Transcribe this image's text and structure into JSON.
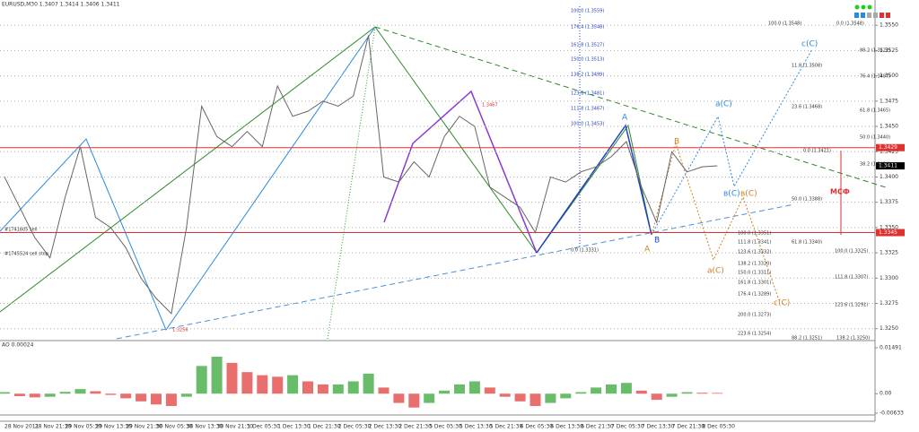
{
  "header": "EURUSD,M30  1.3407 1.3414 1.3406 1.3411",
  "chart_data": {
    "type": "line",
    "categories": [
      "28 Nov 2011",
      null,
      "28 Nov 21:30",
      null,
      "29 Nov 05:30",
      null,
      "29 Nov 13:30",
      null,
      "29 Nov 21:30",
      null,
      "30 Nov 05:30",
      null,
      "30 Nov 13:30",
      null,
      "30 Nov 21:30",
      null,
      "1 Dec 05:30",
      null,
      "1 Dec 13:30",
      null,
      "1 Dec 21:30",
      null,
      "2 Dec 05:30",
      null,
      "2 Dec 13:30",
      null,
      "2 Dec 21:30",
      null,
      "5 Dec 05:30",
      null,
      "5 Dec 13:30",
      null,
      "5 Dec 21:30",
      null,
      "6 Dec 05:30",
      null,
      "6 Dec 13:30",
      null,
      "6 Dec 21:30",
      null,
      "7 Dec 05:30",
      null,
      "7 Dec 13:30",
      null,
      "7 Dec 21:30",
      null,
      "8 Dec 05:30",
      null
    ],
    "series": [
      {
        "name": "EURUSD",
        "color": "#666666",
        "values": [
          1.34,
          1.337,
          1.334,
          1.332,
          1.338,
          1.343,
          1.336,
          1.335,
          1.333,
          1.33,
          1.328,
          1.3265,
          1.335,
          1.347,
          1.344,
          1.343,
          1.3445,
          1.343,
          1.349,
          1.346,
          1.3465,
          1.3475,
          1.347,
          1.348,
          1.354,
          1.34,
          1.3395,
          1.3415,
          1.34,
          1.344,
          1.346,
          1.345,
          1.339,
          1.338,
          1.337,
          1.3345,
          1.34,
          1.3395,
          1.3405,
          1.341,
          1.342,
          1.3435,
          1.339,
          1.3355,
          1.3425,
          1.3405,
          1.341,
          1.3411
        ]
      }
    ],
    "ylim": [
      1.324,
      1.3575
    ],
    "yticks": [
      {
        "value": 1.325,
        "label": "1.3250"
      },
      {
        "value": 1.3275,
        "label": "1.3275"
      },
      {
        "value": 1.33,
        "label": "1.3300"
      },
      {
        "value": 1.3325,
        "label": "1.3325"
      },
      {
        "value": 1.335,
        "label": "1.3350"
      },
      {
        "value": 1.3375,
        "label": "1.3375"
      },
      {
        "value": 1.34,
        "label": "1.3400"
      },
      {
        "value": 1.3425,
        "label": "1.3425"
      },
      {
        "value": 1.345,
        "label": "1.3450"
      },
      {
        "value": 1.3475,
        "label": "1.3475"
      },
      {
        "value": 1.35,
        "label": "1.3500"
      },
      {
        "value": 1.3525,
        "label": "1.3525"
      },
      {
        "value": 1.355,
        "label": "1.3550"
      }
    ],
    "levels": [
      {
        "value": 1.3429,
        "label": "1.3429"
      },
      {
        "value": 1.3345,
        "label": "1.3345"
      }
    ],
    "level_color": "#e03030",
    "current": {
      "value": 1.3411,
      "label": "1.3411"
    },
    "grid": true
  },
  "ao": {
    "type": "bar",
    "title": "AO 0.00024",
    "values": [
      0.0005,
      -0.0008,
      -0.0012,
      -0.001,
      0.0006,
      0.0015,
      0.0008,
      -0.0004,
      -0.0015,
      -0.0025,
      -0.0035,
      -0.004,
      -0.001,
      0.009,
      0.012,
      0.01,
      0.007,
      0.006,
      0.0055,
      0.006,
      0.004,
      0.003,
      0.003,
      0.004,
      0.0065,
      0.002,
      -0.003,
      -0.0045,
      -0.003,
      0.001,
      0.003,
      0.004,
      0.002,
      -0.001,
      -0.0025,
      -0.004,
      -0.003,
      -0.0015,
      0.0005,
      0.002,
      0.003,
      0.0035,
      0.001,
      -0.002,
      -0.001,
      0.0005,
      0.0003,
      0.00024
    ],
    "up_color": "#2aa02a",
    "down_color": "#e03030",
    "ylim": [
      -0.00633,
      0.01491
    ],
    "yticks": [
      {
        "value": -0.00633,
        "label": "-0.00633"
      },
      {
        "value": 0,
        "label": "0.00"
      },
      {
        "value": 0.01491,
        "label": "0.01491"
      }
    ]
  },
  "annotations": [
    "100.0 (1.3559)",
    "176.4 (1.3548)",
    "161.8 (1.3527)",
    "150.0 (1.3513)",
    "138.2 (1.3499)",
    "123.6 (1.3481)",
    "111.8 (1.3467)",
    "100.0 (1.3453)",
    "100.0 (1.3548)",
    "0.0 (1.3548)",
    "88.2 (1.3522)",
    "76.4 (1.3497)",
    "61.8 (1.3465)",
    "50.0 (1.3440)",
    "38.2 (1.3414)",
    "0.0 (1.3421)",
    "23.6 (1.3468)",
    "11.8 (1.3508)",
    "50.0 (1.3388)",
    "100.0 (1.3351)",
    "111.8 (1.3341)",
    "123.6 (1.3332)",
    "138.2 (1.3320)",
    "150.0 (1.3311)",
    "161.8 (1.3301)",
    "176.4 (1.3289)",
    "200.0 (1.3273)",
    "223.6 (1.3254)",
    "88.2 (1.3251)",
    "138.2 (1.3250)",
    "123.6 (1.3291)",
    "111.8 (1.3307)",
    "100.0 (1.3325)",
    "61.8 (1.3340)",
    "0.0 (1.3331)",
    "1.3256",
    "1.3467",
    "#1741605 sell",
    "#1745524 sell stop"
  ],
  "waves": [
    "A",
    "B",
    "c(C)",
    "a(C)",
    "в(C)",
    "в(C)",
    "c(C)",
    "a(C)",
    "A",
    "B"
  ],
  "msf": "МСФ"
}
